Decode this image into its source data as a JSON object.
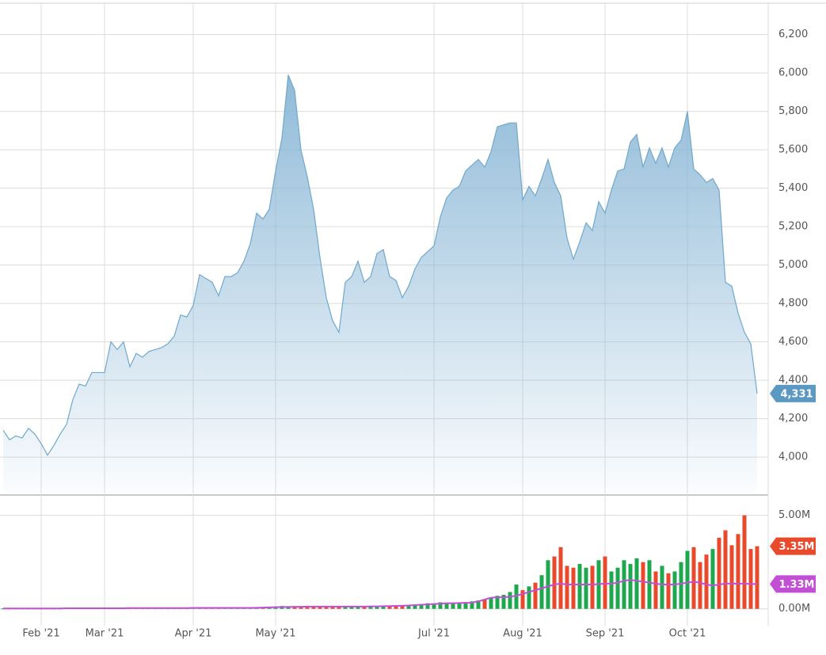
{
  "chart_data": [
    {
      "type": "area",
      "categories": [
        null,
        null,
        null,
        null,
        null,
        null,
        "Feb '21",
        null,
        null,
        null,
        null,
        null,
        null,
        null,
        null,
        null,
        "Mar '21",
        null,
        null,
        null,
        null,
        null,
        null,
        null,
        null,
        null,
        null,
        null,
        null,
        null,
        "Apr '21",
        null,
        null,
        null,
        null,
        null,
        null,
        null,
        null,
        null,
        null,
        null,
        null,
        "May '21",
        null,
        null,
        null,
        null,
        null,
        null,
        null,
        null,
        null,
        null,
        null,
        null,
        null,
        null,
        null,
        null,
        null,
        null,
        null,
        null,
        null,
        null,
        null,
        null,
        "Jul '21",
        null,
        null,
        null,
        null,
        null,
        null,
        null,
        null,
        null,
        null,
        null,
        null,
        null,
        "Aug '21",
        null,
        null,
        null,
        null,
        null,
        null,
        null,
        null,
        null,
        null,
        null,
        null,
        "Sep '21",
        null,
        null,
        null,
        null,
        null,
        null,
        null,
        null,
        null,
        null,
        null,
        null,
        "Oct '21",
        null,
        null,
        null,
        null,
        null,
        null,
        null,
        null,
        null,
        null,
        null
      ],
      "values": [
        4140,
        4090,
        4110,
        4100,
        4150,
        4120,
        4070,
        4010,
        4060,
        4120,
        4170,
        4300,
        4380,
        4370,
        4440,
        4440,
        4440,
        4600,
        4560,
        4600,
        4470,
        4540,
        4520,
        4550,
        4560,
        4570,
        4590,
        4630,
        4740,
        4730,
        4790,
        4950,
        4930,
        4910,
        4840,
        4940,
        4940,
        4960,
        5020,
        5110,
        5270,
        5240,
        5290,
        5490,
        5660,
        5990,
        5910,
        5600,
        5460,
        5290,
        5040,
        4830,
        4710,
        4650,
        4910,
        4940,
        5020,
        4910,
        4940,
        5060,
        5080,
        4940,
        4920,
        4830,
        4890,
        4980,
        5040,
        5070,
        5100,
        5250,
        5350,
        5390,
        5410,
        5490,
        5520,
        5550,
        5510,
        5590,
        5720,
        5730,
        5740,
        5740,
        5340,
        5410,
        5360,
        5450,
        5550,
        5430,
        5360,
        5140,
        5030,
        5120,
        5220,
        5180,
        5330,
        5270,
        5390,
        5490,
        5500,
        5640,
        5680,
        5510,
        5610,
        5530,
        5610,
        5510,
        5610,
        5650,
        5800,
        5500,
        5470,
        5430,
        5450,
        5390,
        4910,
        4890,
        4750,
        4650,
        4590,
        4331
      ],
      "color": "#6fa8cc",
      "ylim": [
        3815,
        6380
      ],
      "yticks": [
        {
          "value": 4000,
          "label": "4,000"
        },
        {
          "value": 4200,
          "label": "4,200"
        },
        {
          "value": 4400,
          "label": "4,400"
        },
        {
          "value": 4600,
          "label": "4,600"
        },
        {
          "value": 4800,
          "label": "4,800"
        },
        {
          "value": 5000,
          "label": "5,000"
        },
        {
          "value": 5200,
          "label": "5,200"
        },
        {
          "value": 5400,
          "label": "5,400"
        },
        {
          "value": 5600,
          "label": "5,600"
        },
        {
          "value": 5800,
          "label": "5,800"
        },
        {
          "value": 6000,
          "label": "6,000"
        },
        {
          "value": 6200,
          "label": "6,200"
        }
      ],
      "grid": true,
      "last_label": {
        "value": 4331,
        "label": "4,331",
        "color": "#5b98c2"
      }
    },
    {
      "type": "volume",
      "values": [
        0.02,
        0.02,
        0.02,
        0.02,
        0.02,
        0.02,
        0.02,
        0.02,
        0.02,
        0.02,
        0.03,
        0.03,
        0.03,
        0.03,
        0.03,
        0.03,
        0.03,
        0.03,
        0.03,
        0.03,
        0.04,
        0.04,
        0.04,
        0.04,
        0.04,
        0.04,
        0.04,
        0.04,
        0.04,
        0.04,
        0.05,
        0.05,
        0.05,
        0.05,
        0.05,
        0.05,
        0.05,
        0.05,
        0.05,
        0.05,
        0.06,
        0.07,
        0.08,
        0.12,
        0.15,
        0.14,
        0.12,
        0.1,
        0.13,
        0.11,
        0.12,
        0.15,
        0.1,
        0.13,
        0.12,
        0.11,
        0.1,
        0.12,
        0.14,
        0.13,
        0.15,
        0.14,
        0.16,
        0.18,
        0.2,
        0.22,
        0.25,
        0.3,
        0.28,
        0.35,
        0.32,
        0.3,
        0.33,
        0.36,
        0.4,
        0.45,
        0.5,
        0.6,
        0.7,
        0.75,
        0.9,
        1.3,
        1.0,
        1.2,
        1.4,
        1.8,
        2.6,
        2.8,
        3.3,
        2.3,
        2.2,
        2.4,
        2.2,
        2.3,
        2.6,
        2.8,
        2.0,
        2.2,
        2.6,
        2.4,
        2.7,
        2.5,
        2.6,
        2.0,
        2.3,
        1.9,
        2.0,
        2.5,
        3.1,
        3.3,
        2.5,
        2.9,
        3.2,
        3.8,
        4.2,
        3.4,
        4.0,
        5.0,
        3.2,
        3.35
      ],
      "up_color": "#1ea84e",
      "down_color": "#ea4a2c",
      "average": {
        "color": "#c24fd6",
        "values": [
          0.02,
          0.02,
          0.02,
          0.02,
          0.02,
          0.02,
          0.02,
          0.02,
          0.02,
          0.02,
          0.03,
          0.03,
          0.03,
          0.03,
          0.03,
          0.03,
          0.03,
          0.03,
          0.03,
          0.03,
          0.04,
          0.04,
          0.04,
          0.04,
          0.04,
          0.04,
          0.04,
          0.04,
          0.04,
          0.04,
          0.05,
          0.05,
          0.05,
          0.05,
          0.05,
          0.05,
          0.05,
          0.05,
          0.05,
          0.05,
          0.06,
          0.07,
          0.08,
          0.09,
          0.1,
          0.1,
          0.11,
          0.11,
          0.12,
          0.12,
          0.12,
          0.12,
          0.12,
          0.12,
          0.12,
          0.12,
          0.12,
          0.12,
          0.13,
          0.13,
          0.14,
          0.15,
          0.16,
          0.17,
          0.18,
          0.2,
          0.22,
          0.24,
          0.26,
          0.28,
          0.3,
          0.3,
          0.31,
          0.32,
          0.33,
          0.4,
          0.5,
          0.6,
          0.62,
          0.62,
          0.65,
          0.7,
          0.8,
          0.9,
          1.0,
          1.1,
          1.2,
          1.3,
          1.35,
          1.3,
          1.3,
          1.3,
          1.3,
          1.3,
          1.32,
          1.35,
          1.35,
          1.4,
          1.5,
          1.55,
          1.5,
          1.45,
          1.4,
          1.35,
          1.3,
          1.3,
          1.3,
          1.35,
          1.4,
          1.45,
          1.4,
          1.3,
          1.25,
          1.3,
          1.35,
          1.35,
          1.35,
          1.35,
          1.33,
          1.33
        ]
      },
      "ylim": [
        -0.9,
        6.0
      ],
      "yticks": [
        {
          "value": 0,
          "label": "0.00M"
        },
        {
          "value": 5,
          "label": "5.00M"
        }
      ],
      "grid": true,
      "last_label": {
        "value": 3.35,
        "label": "3.35M",
        "color": "#ea4a2c"
      },
      "average_label": {
        "value": 1.33,
        "label": "1.33M",
        "color": "#c24fd6"
      }
    }
  ]
}
